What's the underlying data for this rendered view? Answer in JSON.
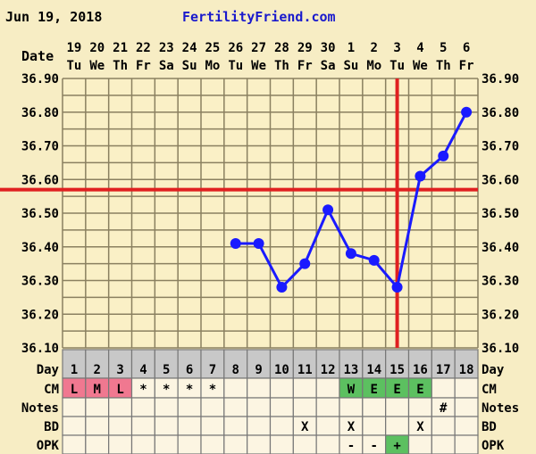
{
  "header": {
    "date": "Jun 19, 2018",
    "brand": "FertilityFriend.com"
  },
  "labels": {
    "date": "Date",
    "day": "Day",
    "cm": "CM",
    "notes": "Notes",
    "bd": "BD",
    "opk": "OPK"
  },
  "colors": {
    "line": "#1a1aff",
    "coverline": "#e02020",
    "grid": "#8a8060",
    "plot_bg": "#faf0c6",
    "cell_bg": "#fcf5e2",
    "day_row": "#c8c8c8",
    "cm_menses": "#f07890",
    "cm_fertile": "#5cc060",
    "opk_positive": "#5cc060"
  },
  "chart_data": {
    "type": "line",
    "x_dates": [
      "19",
      "20",
      "21",
      "22",
      "23",
      "24",
      "25",
      "26",
      "27",
      "28",
      "29",
      "30",
      "1",
      "2",
      "3",
      "4",
      "5",
      "6"
    ],
    "x_weekdays": [
      "Tu",
      "We",
      "Th",
      "Fr",
      "Sa",
      "Su",
      "Mo",
      "Tu",
      "We",
      "Th",
      "Fr",
      "Sa",
      "Su",
      "Mo",
      "Tu",
      "We",
      "Th",
      "Fr"
    ],
    "days": [
      1,
      2,
      3,
      4,
      5,
      6,
      7,
      8,
      9,
      10,
      11,
      12,
      13,
      14,
      15,
      16,
      17,
      18
    ],
    "temps": [
      null,
      null,
      null,
      null,
      null,
      null,
      null,
      36.41,
      36.41,
      36.28,
      36.35,
      36.51,
      36.38,
      36.36,
      36.28,
      36.61,
      36.67,
      36.8
    ],
    "ylim": [
      36.1,
      36.9
    ],
    "y_ticks": [
      "36.90",
      "36.80",
      "36.70",
      "36.60",
      "36.50",
      "36.40",
      "36.30",
      "36.20",
      "36.10"
    ],
    "coverline": 36.57,
    "ovulation_day": 15,
    "grid": true
  },
  "rows": {
    "cm": [
      "L",
      "M",
      "L",
      "*",
      "*",
      "*",
      "*",
      "",
      "",
      "",
      "",
      "",
      "W",
      "E",
      "E",
      "E",
      "",
      ""
    ],
    "notes": [
      "",
      "",
      "",
      "",
      "",
      "",
      "",
      "",
      "",
      "",
      "",
      "",
      "",
      "",
      "",
      "",
      "#",
      ""
    ],
    "bd": [
      "",
      "",
      "",
      "",
      "",
      "",
      "",
      "",
      "",
      "",
      "X",
      "",
      "X",
      "",
      "",
      "X",
      "",
      ""
    ],
    "opk": [
      "",
      "",
      "",
      "",
      "",
      "",
      "",
      "",
      "",
      "",
      "",
      "",
      "-",
      "-",
      "+",
      "",
      "",
      ""
    ]
  }
}
